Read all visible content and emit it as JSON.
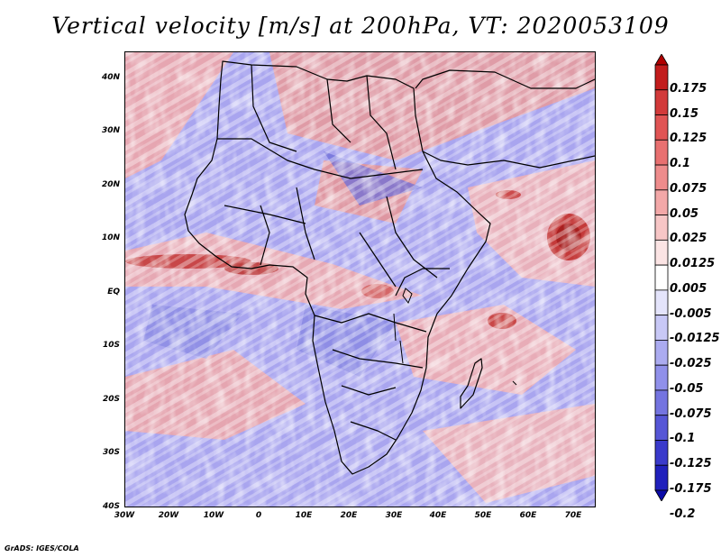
{
  "title": "Vertical velocity [m/s] at 200hPa, VT: 2020053109",
  "credit": "GrADS: IGES/COLA",
  "chart_data": {
    "type": "heatmap",
    "variable": "Vertical velocity",
    "units": "m/s",
    "level": "200hPa",
    "valid_time": "2020053109",
    "region": "Africa",
    "lon_range": [
      -30,
      75
    ],
    "lat_range": [
      -40,
      45
    ],
    "x_ticks": [
      "30W",
      "20W",
      "10W",
      "0",
      "10E",
      "20E",
      "30E",
      "40E",
      "50E",
      "60E",
      "70E"
    ],
    "y_ticks": [
      "40N",
      "30N",
      "20N",
      "10N",
      "EQ",
      "10S",
      "20S",
      "30S",
      "40S"
    ],
    "colorbar": {
      "labels": [
        "0.175",
        "0.15",
        "0.125",
        "0.1",
        "0.075",
        "0.05",
        "0.025",
        "0.0125",
        "0.005",
        "-0.005",
        "-0.0125",
        "-0.025",
        "-0.05",
        "-0.075",
        "-0.1",
        "-0.125",
        "-0.175",
        "-0.2"
      ],
      "colors": [
        "#b00000",
        "#c21c1c",
        "#d23a3a",
        "#e05454",
        "#e87070",
        "#ee8c8c",
        "#f3a8a8",
        "#f7c6c6",
        "#fbe4e4",
        "#ffffff",
        "#e4e4fb",
        "#c8c8f6",
        "#ababf0",
        "#9090ea",
        "#7474e0",
        "#5656d6",
        "#3a3acb",
        "#2020bc",
        "#0a0aa8"
      ]
    }
  }
}
